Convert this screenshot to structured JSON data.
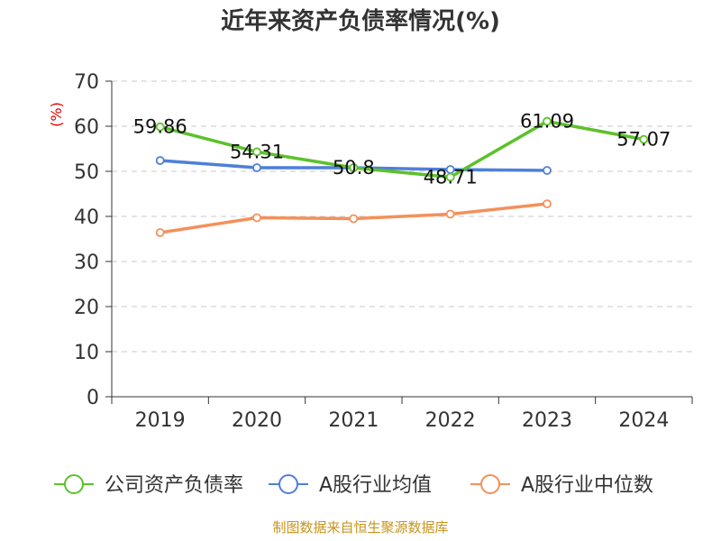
{
  "chart_data": {
    "type": "line",
    "title": "近年来资产负债率情况(%)",
    "ylabel": "(%)",
    "categories": [
      "2019",
      "2020",
      "2021",
      "2022",
      "2023",
      "2024"
    ],
    "ylim": [
      0,
      70
    ],
    "yticks": [
      0,
      10,
      20,
      30,
      40,
      50,
      60,
      70
    ],
    "grid": true,
    "legend_position": "bottom",
    "series": [
      {
        "name": "公司资产负债率",
        "color": "#5cc12a",
        "values": [
          59.86,
          54.31,
          50.8,
          48.71,
          61.09,
          57.07
        ],
        "labels": [
          "59.86",
          "54.31",
          "50.8",
          "48.71",
          "61.09",
          "57.07"
        ]
      },
      {
        "name": "A股行业均值",
        "color": "#4f7fd9",
        "values": [
          52.4,
          50.8,
          50.8,
          50.4,
          50.2,
          null
        ]
      },
      {
        "name": "A股行业中位数",
        "color": "#f4905a",
        "values": [
          36.4,
          39.7,
          39.5,
          40.5,
          42.8,
          null
        ]
      }
    ],
    "source": "制图数据来自恒生聚源数据库"
  }
}
